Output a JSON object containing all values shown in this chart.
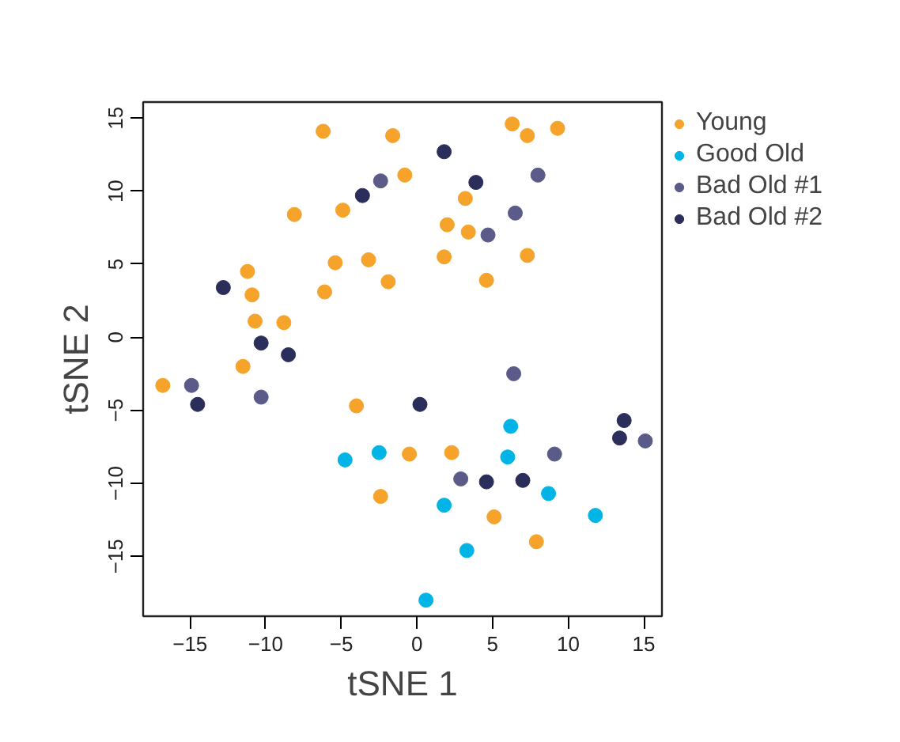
{
  "chart_data": {
    "type": "scatter",
    "xlabel": "tSNE 1",
    "ylabel": "tSNE 2",
    "xlim": [
      -18.1,
      16.2
    ],
    "ylim": [
      -19.1,
      16.1
    ],
    "xticks": [
      -15,
      -10,
      -5,
      0,
      5,
      10,
      15
    ],
    "yticks": [
      -15,
      -10,
      -5,
      0,
      5,
      10,
      15
    ],
    "grid": false,
    "legend": "top right",
    "marker": "circle",
    "series": [
      {
        "name": "Young",
        "color": "#f5a32a",
        "x": [
          -6.2,
          -1.6,
          6.3,
          7.3,
          9.3,
          -0.8,
          3.2,
          -8.1,
          -4.9,
          2.0,
          3.4,
          -5.4,
          -3.2,
          1.8,
          7.3,
          -1.9,
          4.6,
          -6.1,
          -11.2,
          -10.9,
          -10.7,
          -8.8,
          -11.5,
          -16.8,
          -4.0,
          -0.5,
          2.3,
          -2.4,
          5.1,
          7.9
        ],
        "values": [
          14.1,
          13.8,
          14.6,
          13.8,
          14.3,
          11.1,
          9.5,
          8.4,
          8.7,
          7.7,
          7.2,
          5.1,
          5.3,
          5.5,
          5.6,
          3.8,
          3.9,
          3.1,
          4.5,
          2.9,
          1.1,
          1.0,
          -2.0,
          -3.3,
          -4.7,
          -8.0,
          -7.9,
          -10.9,
          -12.3,
          -14.0
        ]
      },
      {
        "name": "Good Old",
        "color": "#00b4e6",
        "x": [
          -4.75,
          -2.5,
          6.2,
          6.0,
          8.7,
          1.8,
          11.8,
          3.3,
          0.6
        ],
        "values": [
          -8.4,
          -7.9,
          -6.1,
          -8.2,
          -10.7,
          -11.5,
          -12.2,
          -14.6,
          -18.0
        ]
      },
      {
        "name": "Bad Old #1",
        "color": "#5b5b8a",
        "x": [
          -2.4,
          8.0,
          6.5,
          4.7,
          -14.9,
          -10.3,
          6.4,
          9.1,
          15.1,
          2.9
        ],
        "values": [
          10.7,
          11.1,
          8.5,
          7.0,
          -3.3,
          -4.1,
          -2.5,
          -8.0,
          -7.1,
          -9.7
        ]
      },
      {
        "name": "Bad Old #2",
        "color": "#2b2d5b",
        "x": [
          1.8,
          3.9,
          -3.6,
          -12.8,
          -10.3,
          -8.5,
          -14.5,
          0.2,
          13.7,
          13.4,
          4.6,
          7.0
        ],
        "values": [
          12.7,
          10.6,
          9.7,
          3.4,
          -0.4,
          -1.2,
          -4.6,
          -4.6,
          -5.7,
          -6.9,
          -9.9,
          -9.8
        ]
      }
    ]
  }
}
